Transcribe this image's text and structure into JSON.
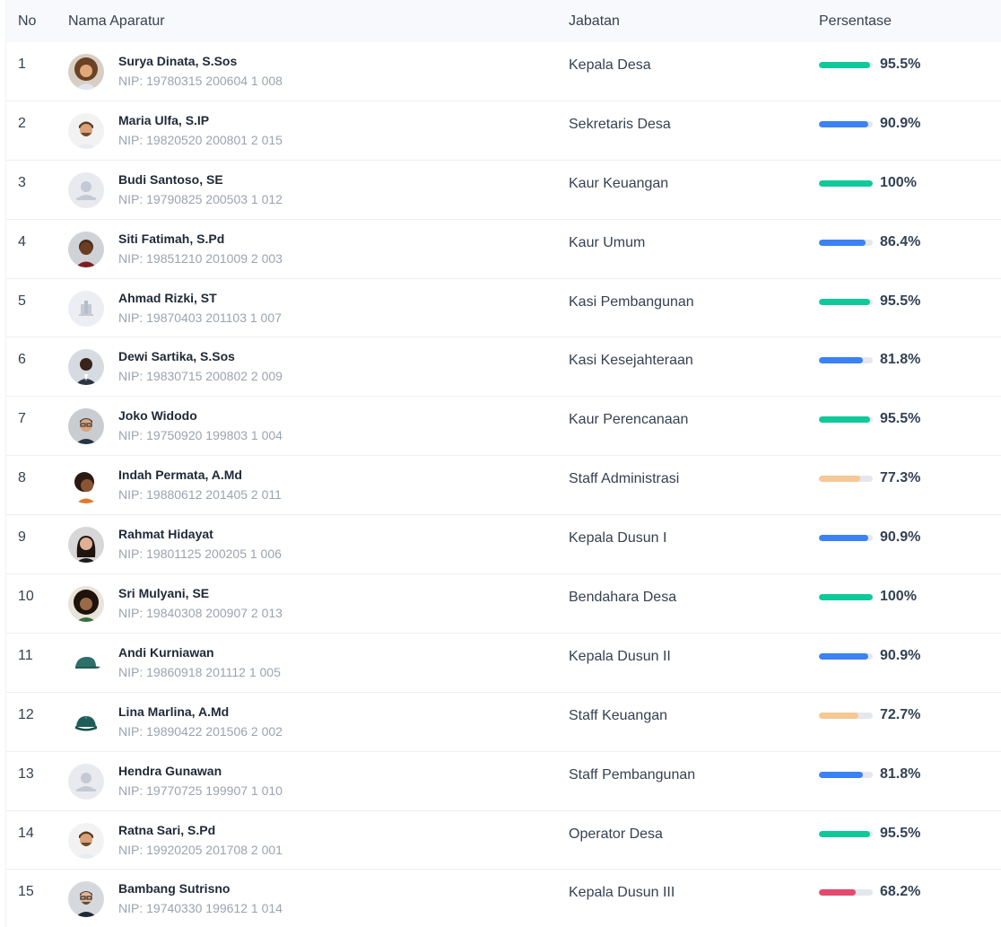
{
  "table": {
    "headers": {
      "no": "No",
      "name": "Nama Aparatur",
      "position": "Jabatan",
      "percentage": "Persentase"
    },
    "rows": [
      {
        "no": "1",
        "name": "Surya Dinata, S.Sos",
        "nip": "NIP: 19780315 200604 1 008",
        "position": "Kepala Desa",
        "percent": "95.5%",
        "level": 0.955,
        "bar_color": "#10c99a",
        "avatar": "photo-woman-curly"
      },
      {
        "no": "2",
        "name": "Maria Ulfa, S.IP",
        "nip": "NIP: 19820520 200801 2 015",
        "position": "Sekretaris Desa",
        "percent": "90.9%",
        "level": 0.909,
        "bar_color": "#3b82f6",
        "avatar": "photo-man-beard"
      },
      {
        "no": "3",
        "name": "Budi Santoso, SE",
        "nip": "NIP: 19790825 200503 1 012",
        "position": "Kaur Keuangan",
        "percent": "100%",
        "level": 1.0,
        "bar_color": "#10c99a",
        "avatar": "placeholder-person"
      },
      {
        "no": "4",
        "name": "Siti Fatimah, S.Pd",
        "nip": "NIP: 19851210 201009 2 003",
        "position": "Kaur Umum",
        "percent": "86.4%",
        "level": 0.864,
        "bar_color": "#3b82f6",
        "avatar": "photo-man-smile"
      },
      {
        "no": "5",
        "name": "Ahmad Rizki, ST",
        "nip": "NIP: 19870403 201103 1 007",
        "position": "Kasi Pembangunan",
        "percent": "95.5%",
        "level": 0.955,
        "bar_color": "#10c99a",
        "avatar": "placeholder-building"
      },
      {
        "no": "6",
        "name": "Dewi Sartika, S.Sos",
        "nip": "NIP: 19830715 200802 2 009",
        "position": "Kasi Kesejahteraan",
        "percent": "81.8%",
        "level": 0.818,
        "bar_color": "#3b82f6",
        "avatar": "photo-man-suit"
      },
      {
        "no": "7",
        "name": "Joko Widodo",
        "nip": "NIP: 19750920 199803 1 004",
        "position": "Kaur Perencanaan",
        "percent": "95.5%",
        "level": 0.955,
        "bar_color": "#10c99a",
        "avatar": "photo-man-glasses"
      },
      {
        "no": "8",
        "name": "Indah Permata, A.Md",
        "nip": "NIP: 19880612 201405 2 011",
        "position": "Staff Administrasi",
        "percent": "77.3%",
        "level": 0.773,
        "bar_color": "#f5c894",
        "avatar": "photo-woman-laugh"
      },
      {
        "no": "9",
        "name": "Rahmat Hidayat",
        "nip": "NIP: 19801125 200205 1 006",
        "position": "Kepala Dusun I",
        "percent": "90.9%",
        "level": 0.909,
        "bar_color": "#3b82f6",
        "avatar": "photo-woman-dark-hair"
      },
      {
        "no": "10",
        "name": "Sri Mulyani, SE",
        "nip": "NIP: 19840308 200907 2 013",
        "position": "Bendahara Desa",
        "percent": "100%",
        "level": 1.0,
        "bar_color": "#10c99a",
        "avatar": "photo-woman-curly-dark"
      },
      {
        "no": "11",
        "name": "Andi Kurniawan",
        "nip": "NIP: 19860918 201112 1 005",
        "position": "Kepala Dusun II",
        "percent": "90.9%",
        "level": 0.909,
        "bar_color": "#3b82f6",
        "avatar": "cap-side"
      },
      {
        "no": "12",
        "name": "Lina Marlina, A.Md",
        "nip": "NIP: 19890422 201506 2 002",
        "position": "Staff Keuangan",
        "percent": "72.7%",
        "level": 0.727,
        "bar_color": "#f5c894",
        "avatar": "cap-front"
      },
      {
        "no": "13",
        "name": "Hendra Gunawan",
        "nip": "NIP: 19770725 199907 1 010",
        "position": "Staff Pembangunan",
        "percent": "81.8%",
        "level": 0.818,
        "bar_color": "#3b82f6",
        "avatar": "placeholder-person"
      },
      {
        "no": "14",
        "name": "Ratna Sari, S.Pd",
        "nip": "NIP: 19920205 201708 2 001",
        "position": "Operator Desa",
        "percent": "95.5%",
        "level": 0.955,
        "bar_color": "#10c99a",
        "avatar": "photo-man-beard"
      },
      {
        "no": "15",
        "name": "Bambang Sutrisno",
        "nip": "NIP: 19740330 199612 1 014",
        "position": "Kepala Dusun III",
        "percent": "68.2%",
        "level": 0.682,
        "bar_color": "#e5496e",
        "avatar": "photo-man-glasses-beard"
      }
    ]
  }
}
